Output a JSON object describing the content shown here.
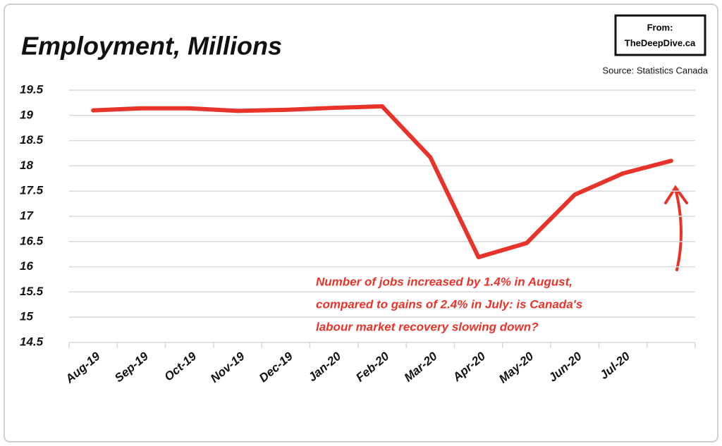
{
  "chart_data": {
    "type": "line",
    "title": "Employment, Millions",
    "source": "Source: Statistics Canada",
    "credit": [
      "From:",
      "TheDeepDive.ca"
    ],
    "annotation": [
      "Number of jobs increased by 1.4% in August,",
      "compared to gains of 2.4% in July: is Canada's",
      "labour market recovery slowing down?"
    ],
    "categories": [
      "Aug-19",
      "Sep-19",
      "Oct-19",
      "Nov-19",
      "Dec-19",
      "Jan-20",
      "Feb-20",
      "Mar-20",
      "Apr-20",
      "May-20",
      "Jun-20",
      "Jul-20",
      null
    ],
    "series": [
      {
        "name": "Employment",
        "color": "#e8332a",
        "values": [
          19.1,
          19.14,
          19.14,
          19.09,
          19.11,
          19.15,
          19.18,
          18.17,
          16.19,
          16.47,
          17.43,
          17.85,
          18.1
        ]
      }
    ],
    "ylim": [
      14.5,
      19.5
    ],
    "yticks": [
      14.5,
      15,
      15.5,
      16,
      16.5,
      17,
      17.5,
      18,
      18.5,
      19,
      19.5
    ],
    "grid": true
  }
}
